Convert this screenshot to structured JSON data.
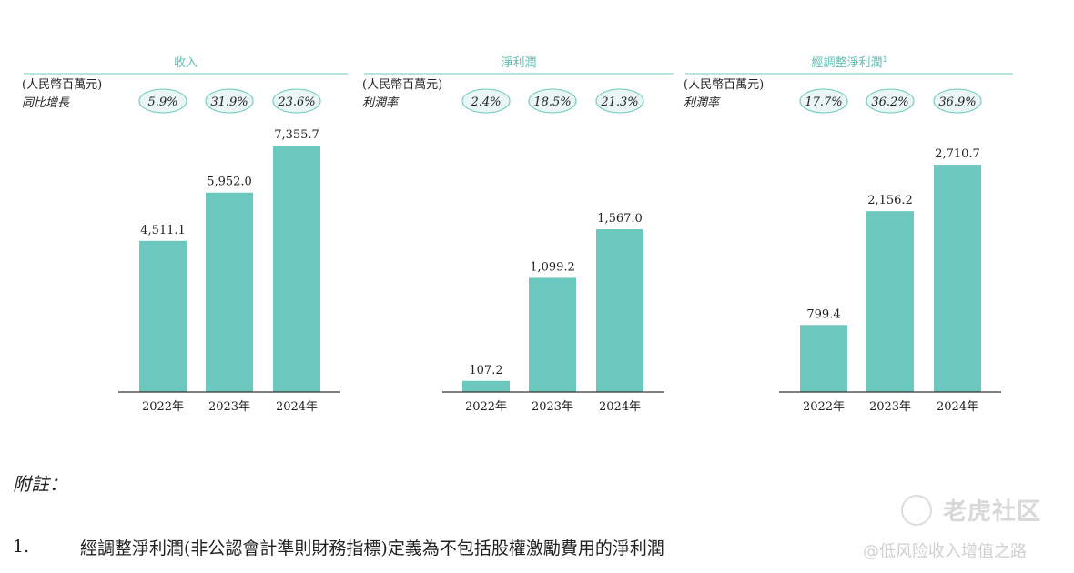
{
  "chart_data": [
    {
      "type": "bar",
      "title": "收入",
      "title_sup": "",
      "unit": "(人民幣百萬元)",
      "row_label": "同比增長",
      "categories": [
        "2022年",
        "2023年",
        "2024年"
      ],
      "values": [
        4511.1,
        5952.0,
        7355.7
      ],
      "value_labels": [
        "4,511.1",
        "5,952.0",
        "7,355.7"
      ],
      "percentages": [
        "5.9%",
        "31.9%",
        "23.6%"
      ],
      "ylim": [
        0,
        7355.7
      ]
    },
    {
      "type": "bar",
      "title": "淨利潤",
      "title_sup": "",
      "unit": "(人民幣百萬元)",
      "row_label": "利潤率",
      "categories": [
        "2022年",
        "2023年",
        "2024年"
      ],
      "values": [
        107.2,
        1099.2,
        1567.0
      ],
      "value_labels": [
        "107.2",
        "1,099.2",
        "1,567.0"
      ],
      "percentages": [
        "2.4%",
        "18.5%",
        "21.3%"
      ],
      "ylim": [
        0,
        2600
      ]
    },
    {
      "type": "bar",
      "title": "經調整淨利潤",
      "title_sup": "1",
      "unit": "(人民幣百萬元)",
      "row_label": "利潤率",
      "categories": [
        "2022年",
        "2023年",
        "2024年"
      ],
      "values": [
        799.4,
        2156.2,
        2710.7
      ],
      "value_labels": [
        "799.4",
        "2,156.2",
        "2,710.7"
      ],
      "percentages": [
        "17.7%",
        "36.2%",
        "36.9%"
      ],
      "ylim": [
        0,
        3100
      ]
    }
  ],
  "colors": {
    "bar": "#6cc8bf",
    "accent": "#5fbfb4"
  },
  "footnote": {
    "title": "附註：",
    "number": "1.",
    "text": "經調整淨利潤(非公認會計準則財務指標)定義為不包括股權激勵費用的淨利潤"
  },
  "watermark": {
    "brand": "老虎社区",
    "handle": "@低风险收入增值之路",
    "icon": "tiger-logo-icon"
  }
}
